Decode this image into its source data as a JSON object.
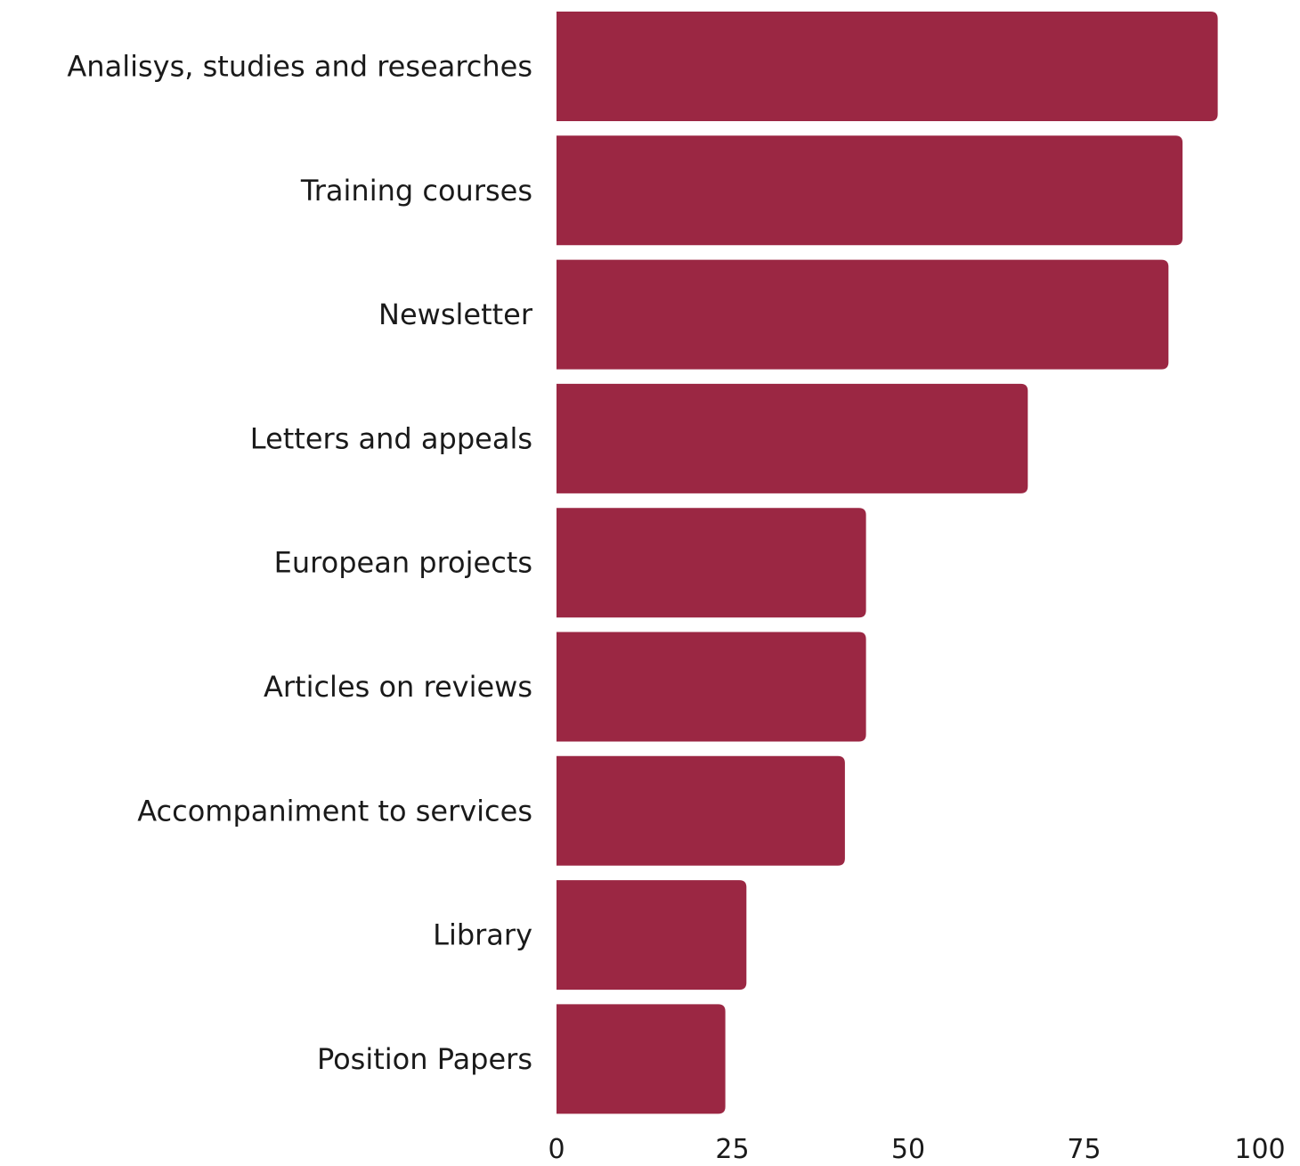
{
  "chart_data": {
    "type": "bar",
    "orientation": "horizontal",
    "title": "",
    "xlabel": "",
    "ylabel": "",
    "categories": [
      "Analisys, studies and researches",
      "Training courses",
      "Newsletter",
      "Letters and appeals",
      "European projects",
      "Articles on reviews",
      "Accompaniment to services",
      "Library",
      "Position Papers"
    ],
    "values": [
      94,
      89,
      87,
      67,
      44,
      44,
      41,
      27,
      24
    ],
    "xlim": [
      0,
      100
    ],
    "xticks": [
      "0",
      "25",
      "50",
      "75",
      "100"
    ],
    "grid": false,
    "legend": "none",
    "bar_color": "#9b2743"
  }
}
